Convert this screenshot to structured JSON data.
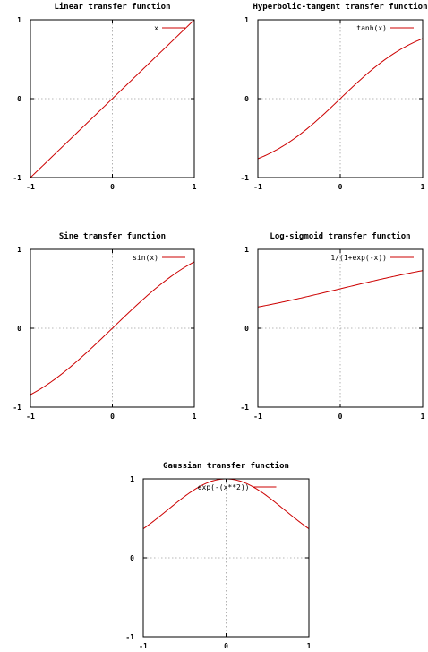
{
  "chart_data": [
    {
      "type": "line",
      "title": "Linear transfer function",
      "xlabel": "",
      "ylabel": "",
      "xlim": [
        -1,
        1
      ],
      "ylim": [
        -1,
        1
      ],
      "xticks": [
        "-1",
        "0",
        "1"
      ],
      "yticks": [
        "-1",
        "0",
        "1"
      ],
      "grid": true,
      "legend_position": "top-right",
      "series": [
        {
          "name": "x",
          "color": "#cc0000",
          "function": "linear",
          "x": [
            -1,
            -0.75,
            -0.5,
            -0.25,
            0,
            0.25,
            0.5,
            0.75,
            1
          ],
          "y": [
            -1,
            -0.75,
            -0.5,
            -0.25,
            0,
            0.25,
            0.5,
            0.75,
            1
          ]
        }
      ]
    },
    {
      "type": "line",
      "title": "Hyperbolic-tangent transfer function",
      "xlabel": "",
      "ylabel": "",
      "xlim": [
        -1,
        1
      ],
      "ylim": [
        -1,
        1
      ],
      "xticks": [
        "-1",
        "0",
        "1"
      ],
      "yticks": [
        "-1",
        "0",
        "1"
      ],
      "grid": true,
      "legend_position": "top-right",
      "series": [
        {
          "name": "tanh(x)",
          "color": "#cc0000",
          "function": "tanh",
          "x": [
            -1,
            -0.75,
            -0.5,
            -0.25,
            0,
            0.25,
            0.5,
            0.75,
            1
          ],
          "y": [
            -0.76,
            -0.64,
            -0.46,
            -0.24,
            0,
            0.24,
            0.46,
            0.64,
            0.76
          ]
        }
      ]
    },
    {
      "type": "line",
      "title": "Sine transfer function",
      "xlabel": "",
      "ylabel": "",
      "xlim": [
        -1,
        1
      ],
      "ylim": [
        -1,
        1
      ],
      "xticks": [
        "-1",
        "0",
        "1"
      ],
      "yticks": [
        "-1",
        "0",
        "1"
      ],
      "grid": true,
      "legend_position": "top-right",
      "series": [
        {
          "name": "sin(x)",
          "color": "#cc0000",
          "function": "sin",
          "x": [
            -1,
            -0.75,
            -0.5,
            -0.25,
            0,
            0.25,
            0.5,
            0.75,
            1
          ],
          "y": [
            -0.84,
            -0.68,
            -0.48,
            -0.25,
            0,
            0.25,
            0.48,
            0.68,
            0.84
          ]
        }
      ]
    },
    {
      "type": "line",
      "title": "Log-sigmoid transfer function",
      "xlabel": "",
      "ylabel": "",
      "xlim": [
        -1,
        1
      ],
      "ylim": [
        -1,
        1
      ],
      "xticks": [
        "-1",
        "0",
        "1"
      ],
      "yticks": [
        "-1",
        "0",
        "1"
      ],
      "grid": true,
      "legend_position": "top-right",
      "series": [
        {
          "name": "1/(1+exp(-x))",
          "color": "#cc0000",
          "function": "logsig",
          "x": [
            -1,
            -0.75,
            -0.5,
            -0.25,
            0,
            0.25,
            0.5,
            0.75,
            1
          ],
          "y": [
            0.27,
            0.32,
            0.38,
            0.44,
            0.5,
            0.56,
            0.62,
            0.68,
            0.73
          ]
        }
      ]
    },
    {
      "type": "line",
      "title": "Gaussian transfer function",
      "xlabel": "",
      "ylabel": "",
      "xlim": [
        -1,
        1
      ],
      "ylim": [
        -1,
        1
      ],
      "xticks": [
        "-1",
        "0",
        "1"
      ],
      "yticks": [
        "-1",
        "0",
        "1"
      ],
      "grid": true,
      "legend_position": "top-center",
      "series": [
        {
          "name": "exp(-(x**2))",
          "color": "#cc0000",
          "function": "gaussian",
          "x": [
            -1,
            -0.75,
            -0.5,
            -0.25,
            0,
            0.25,
            0.5,
            0.75,
            1
          ],
          "y": [
            0.37,
            0.57,
            0.78,
            0.94,
            1,
            0.94,
            0.78,
            0.57,
            0.37
          ]
        }
      ]
    }
  ]
}
